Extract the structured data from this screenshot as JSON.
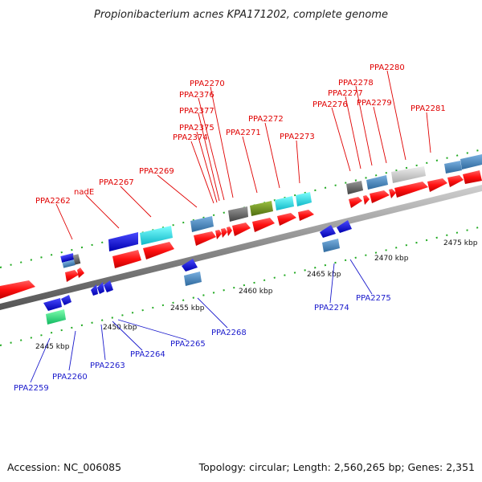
{
  "title": "Propionibacterium acnes KPA171202, complete genome",
  "footer": {
    "accession": "Accession: NC_006085",
    "summary": "Topology: circular; Length: 2,560,265 bp; Genes: 2,351"
  },
  "scale_labels": [
    "2445 kbp",
    "2450 kbp",
    "2455 kbp",
    "2460 kbp",
    "2465 kbp",
    "2470 kbp",
    "2475 kbp"
  ],
  "forward_labels": [
    "PPA2262",
    "nadE",
    "PPA2267",
    "PPA2269",
    "PPA2270",
    "PPA2376",
    "PPA2377",
    "PPA2375",
    "PPA2374",
    "PPA2271",
    "PPA2272",
    "PPA2273",
    "PPA2276",
    "PPA2277",
    "PPA2278",
    "PPA2279",
    "PPA2280",
    "PPA2281"
  ],
  "reverse_labels": [
    "PPA2259",
    "PPA2260",
    "PPA2263",
    "PPA2264",
    "PPA2265",
    "PPA2268",
    "PPA2274",
    "PPA2275"
  ],
  "colors": {
    "forward_label": "#e00000",
    "reverse_label": "#1a1acc",
    "gene_red": "#ff1a1a",
    "gene_blue": "#1a1acc",
    "gene_cyan": "#22cccc",
    "gene_steelblue": "#4a8ac0",
    "gene_grey": "#666666",
    "gene_olive": "#6b8e23",
    "gene_lightgrey": "#c8c8c8",
    "gene_green": "#33dd88",
    "backbone": "#888888",
    "tick_forward": "#22aa22"
  }
}
